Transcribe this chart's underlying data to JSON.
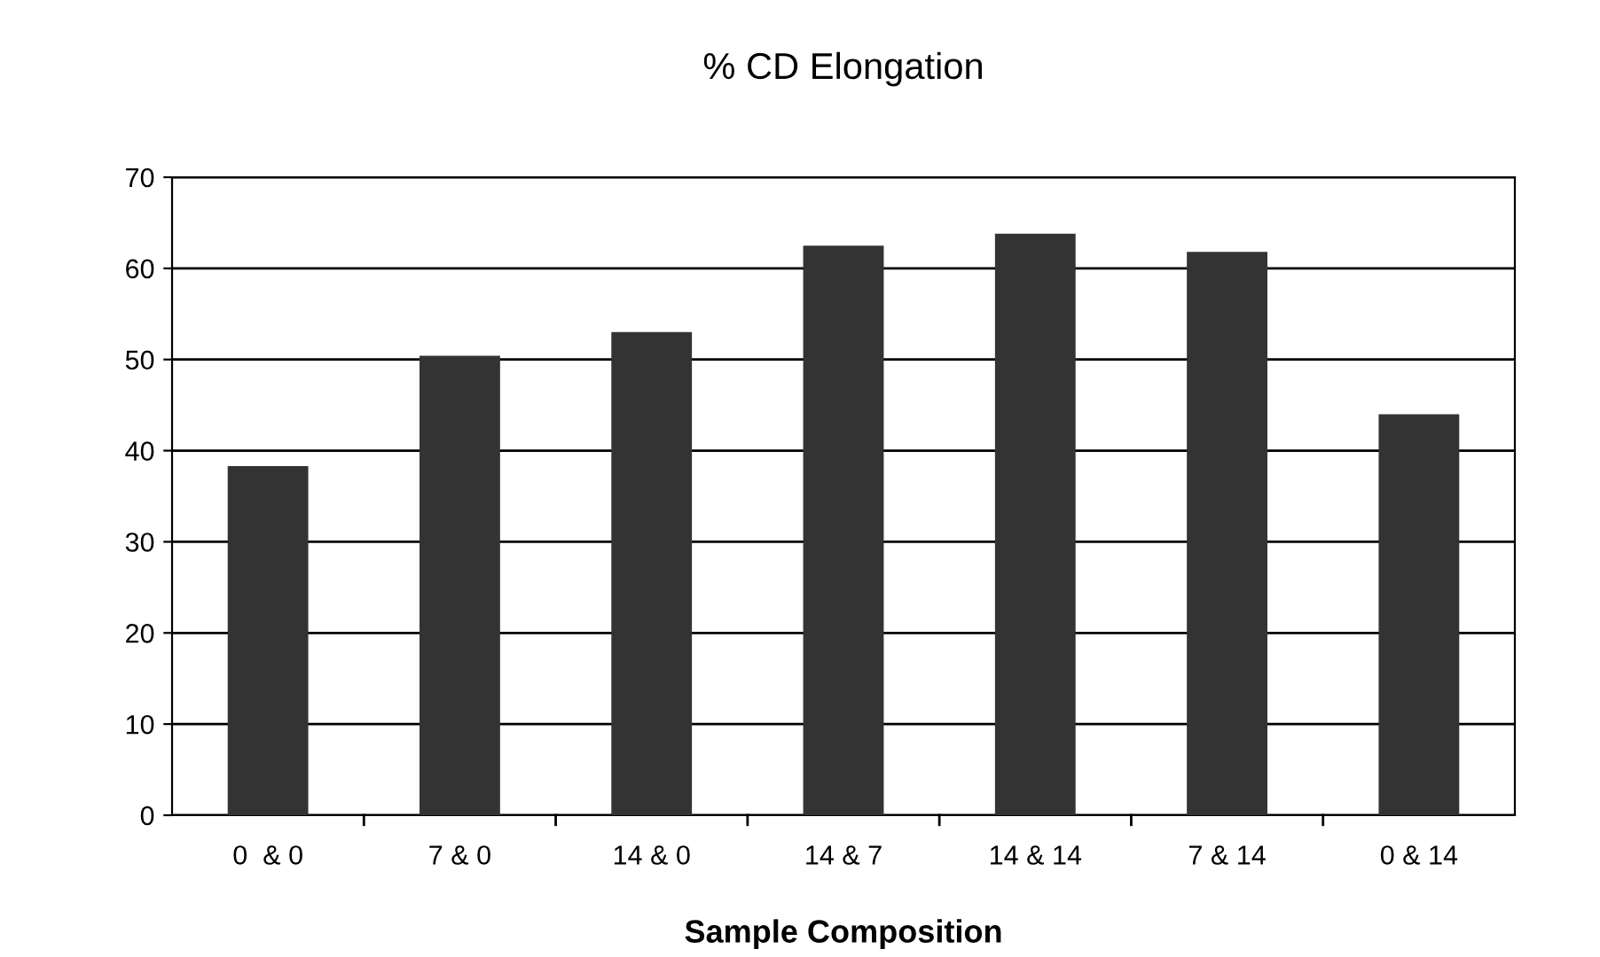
{
  "chart_data": {
    "type": "bar",
    "title": "% CD Elongation",
    "xlabel": "Sample Composition",
    "categories": [
      "0  & 0",
      "7 & 0",
      "14 & 0",
      "14 & 7",
      "14 & 14",
      "7 & 14",
      "0 & 14"
    ],
    "values": [
      38.3,
      50.4,
      53,
      62.5,
      63.8,
      61.8,
      44
    ],
    "color": "#333333",
    "ylim": [
      0,
      70
    ],
    "yticks": [
      0,
      10,
      20,
      30,
      40,
      50,
      60,
      70
    ],
    "grid": "y",
    "legend": false
  }
}
